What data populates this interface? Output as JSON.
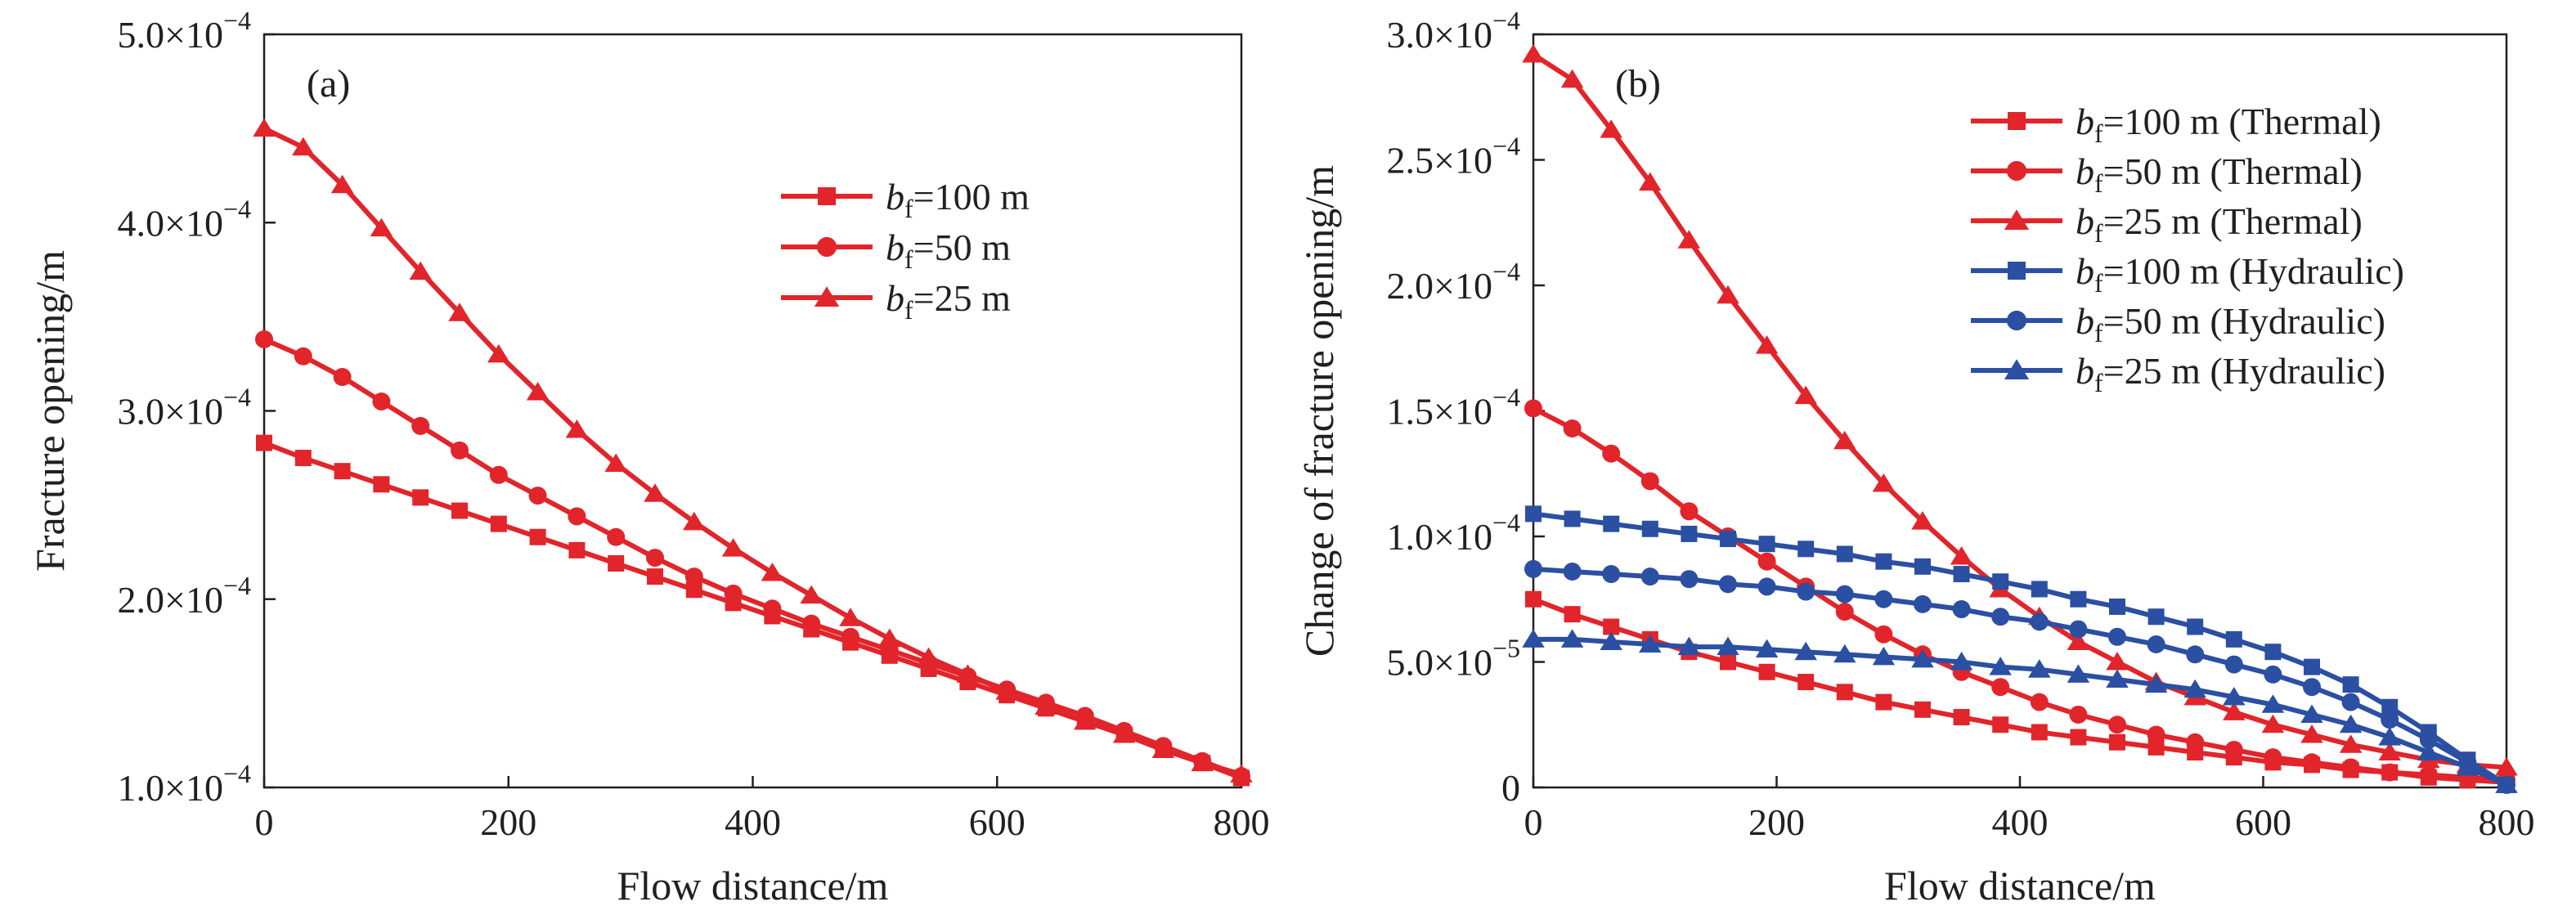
{
  "chart_data": [
    {
      "type": "line",
      "panel_label": "(a)",
      "xlabel": "Flow distance/m",
      "ylabel": "Fracture opening/m",
      "xlim": [
        0,
        800
      ],
      "ylim": [
        0.0001,
        0.0005
      ],
      "xticks": [
        {
          "v": 0,
          "label": "0"
        },
        {
          "v": 200,
          "label": "200"
        },
        {
          "v": 400,
          "label": "400"
        },
        {
          "v": 600,
          "label": "600"
        },
        {
          "v": 800,
          "label": "800"
        }
      ],
      "yticks": [
        {
          "v": 0.0001,
          "m": "1.0",
          "exp": "−4"
        },
        {
          "v": 0.0002,
          "m": "2.0",
          "exp": "−4"
        },
        {
          "v": 0.0003,
          "m": "3.0",
          "exp": "−4"
        },
        {
          "v": 0.0004,
          "m": "4.0",
          "exp": "−4"
        },
        {
          "v": 0.0005,
          "m": "5.0",
          "exp": "−4"
        }
      ],
      "legend_position": "upper-middle",
      "x": [
        0,
        32,
        64,
        96,
        128,
        160,
        192,
        224,
        256,
        288,
        320,
        352,
        384,
        416,
        448,
        480,
        512,
        544,
        576,
        608,
        640,
        672,
        704,
        736,
        768,
        800
      ],
      "series": [
        {
          "legend_prefix": "b",
          "legend_sub": "f",
          "legend_rest": "=100 m",
          "marker": "square",
          "color": "#e1252b",
          "values": [
            0.000283,
            0.000275,
            0.000268,
            0.000261,
            0.000254,
            0.000247,
            0.00024,
            0.000233,
            0.000226,
            0.000219,
            0.000212,
            0.000205,
            0.000198,
            0.000191,
            0.000184,
            0.000177,
            0.00017,
            0.000163,
            0.000156,
            0.000149,
            0.000142,
            0.000135,
            0.000128,
            0.00012,
            0.000113,
            0.000105
          ]
        },
        {
          "legend_prefix": "b",
          "legend_sub": "f",
          "legend_rest": "=50 m",
          "marker": "circle",
          "color": "#e1252b",
          "values": [
            0.000338,
            0.000329,
            0.000318,
            0.000305,
            0.000292,
            0.000279,
            0.000266,
            0.000255,
            0.000244,
            0.000233,
            0.000222,
            0.000212,
            0.000203,
            0.000195,
            0.000187,
            0.00018,
            0.000173,
            0.000166,
            0.000159,
            0.000152,
            0.000145,
            0.000138,
            0.00013,
            0.000122,
            0.000114,
            0.000106
          ]
        },
        {
          "legend_prefix": "b",
          "legend_sub": "f",
          "legend_rest": "=25 m",
          "marker": "triangle",
          "color": "#e1252b",
          "values": [
            0.00045,
            0.00044,
            0.00042,
            0.000397,
            0.000374,
            0.000352,
            0.00033,
            0.00031,
            0.00029,
            0.000272,
            0.000256,
            0.000241,
            0.000227,
            0.000214,
            0.000202,
            0.00019,
            0.000179,
            0.000169,
            0.00016,
            0.000151,
            0.000143,
            0.000135,
            0.000128,
            0.00012,
            0.000113,
            0.000107
          ]
        }
      ]
    },
    {
      "type": "line",
      "panel_label": "(b)",
      "xlabel": "Flow distance/m",
      "ylabel": "Change of fracture opening/m",
      "xlim": [
        0,
        800
      ],
      "ylim": [
        0,
        0.0003
      ],
      "xticks": [
        {
          "v": 0,
          "label": "0"
        },
        {
          "v": 200,
          "label": "200"
        },
        {
          "v": 400,
          "label": "400"
        },
        {
          "v": 600,
          "label": "600"
        },
        {
          "v": 800,
          "label": "800"
        }
      ],
      "yticks": [
        {
          "v": 0,
          "m": "0",
          "exp": ""
        },
        {
          "v": 5e-05,
          "m": "5.0",
          "exp": "−5"
        },
        {
          "v": 0.0001,
          "m": "1.0",
          "exp": "−4"
        },
        {
          "v": 0.00015,
          "m": "1.5",
          "exp": "−4"
        },
        {
          "v": 0.0002,
          "m": "2.0",
          "exp": "−4"
        },
        {
          "v": 0.00025,
          "m": "2.5",
          "exp": "−4"
        },
        {
          "v": 0.0003,
          "m": "3.0",
          "exp": "−4"
        }
      ],
      "legend_position": "top-right",
      "x": [
        0,
        32,
        64,
        96,
        128,
        160,
        192,
        224,
        256,
        288,
        320,
        352,
        384,
        416,
        448,
        480,
        512,
        544,
        576,
        608,
        640,
        672,
        704,
        736,
        768,
        800
      ],
      "series": [
        {
          "legend_prefix": "b",
          "legend_sub": "f",
          "legend_rest": "=100 m (Thermal)",
          "marker": "square",
          "color": "#e1252b",
          "values": [
            7.5e-05,
            6.9e-05,
            6.4e-05,
            5.9e-05,
            5.4e-05,
            5e-05,
            4.6e-05,
            4.2e-05,
            3.8e-05,
            3.4e-05,
            3.1e-05,
            2.8e-05,
            2.5e-05,
            2.2e-05,
            2e-05,
            1.8e-05,
            1.6e-05,
            1.4e-05,
            1.2e-05,
            1e-05,
            9e-06,
            7e-06,
            6e-06,
            4e-06,
            3e-06,
            2e-06
          ]
        },
        {
          "legend_prefix": "b",
          "legend_sub": "f",
          "legend_rest": "=50 m (Thermal)",
          "marker": "circle",
          "color": "#e1252b",
          "values": [
            0.000151,
            0.000143,
            0.000133,
            0.000122,
            0.00011,
            0.0001,
            9e-05,
            8e-05,
            7e-05,
            6.1e-05,
            5.3e-05,
            4.6e-05,
            4e-05,
            3.4e-05,
            2.9e-05,
            2.5e-05,
            2.1e-05,
            1.8e-05,
            1.5e-05,
            1.2e-05,
            1e-05,
            8e-06,
            6e-06,
            5e-06,
            4e-06,
            3e-06
          ]
        },
        {
          "legend_prefix": "b",
          "legend_sub": "f",
          "legend_rest": "=25 m (Thermal)",
          "marker": "triangle",
          "color": "#e1252b",
          "values": [
            0.000292,
            0.000282,
            0.000262,
            0.000241,
            0.000218,
            0.000196,
            0.000176,
            0.000156,
            0.000138,
            0.000121,
            0.000106,
            9.2e-05,
            7.9e-05,
            6.8e-05,
            5.8e-05,
            5e-05,
            4.2e-05,
            3.6e-05,
            3e-05,
            2.5e-05,
            2.1e-05,
            1.7e-05,
            1.4e-05,
            1.1e-05,
            9e-06,
            8e-06
          ]
        },
        {
          "legend_prefix": "b",
          "legend_sub": "f",
          "legend_rest": "=100 m (Hydraulic)",
          "marker": "square",
          "color": "#2b4fa2",
          "values": [
            0.000109,
            0.000107,
            0.000105,
            0.000103,
            0.000101,
            9.9e-05,
            9.7e-05,
            9.5e-05,
            9.3e-05,
            9e-05,
            8.8e-05,
            8.5e-05,
            8.2e-05,
            7.9e-05,
            7.5e-05,
            7.2e-05,
            6.8e-05,
            6.4e-05,
            5.9e-05,
            5.4e-05,
            4.8e-05,
            4.1e-05,
            3.2e-05,
            2.2e-05,
            1.1e-05,
            1e-06
          ]
        },
        {
          "legend_prefix": "b",
          "legend_sub": "f",
          "legend_rest": "=50 m (Hydraulic)",
          "marker": "circle",
          "color": "#2b4fa2",
          "values": [
            8.7e-05,
            8.6e-05,
            8.5e-05,
            8.4e-05,
            8.3e-05,
            8.1e-05,
            8e-05,
            7.8e-05,
            7.7e-05,
            7.5e-05,
            7.3e-05,
            7.1e-05,
            6.8e-05,
            6.6e-05,
            6.3e-05,
            6e-05,
            5.7e-05,
            5.3e-05,
            4.9e-05,
            4.5e-05,
            4e-05,
            3.4e-05,
            2.7e-05,
            1.9e-05,
            1e-05,
            1e-06
          ]
        },
        {
          "legend_prefix": "b",
          "legend_sub": "f",
          "legend_rest": "=25 m (Hydraulic)",
          "marker": "triangle",
          "color": "#2b4fa2",
          "values": [
            5.9e-05,
            5.9e-05,
            5.8e-05,
            5.7e-05,
            5.6e-05,
            5.6e-05,
            5.5e-05,
            5.4e-05,
            5.3e-05,
            5.2e-05,
            5.1e-05,
            5e-05,
            4.8e-05,
            4.7e-05,
            4.5e-05,
            4.3e-05,
            4.1e-05,
            3.9e-05,
            3.6e-05,
            3.3e-05,
            2.9e-05,
            2.5e-05,
            2e-05,
            1.4e-05,
            8e-06,
            1e-06
          ]
        }
      ]
    }
  ]
}
